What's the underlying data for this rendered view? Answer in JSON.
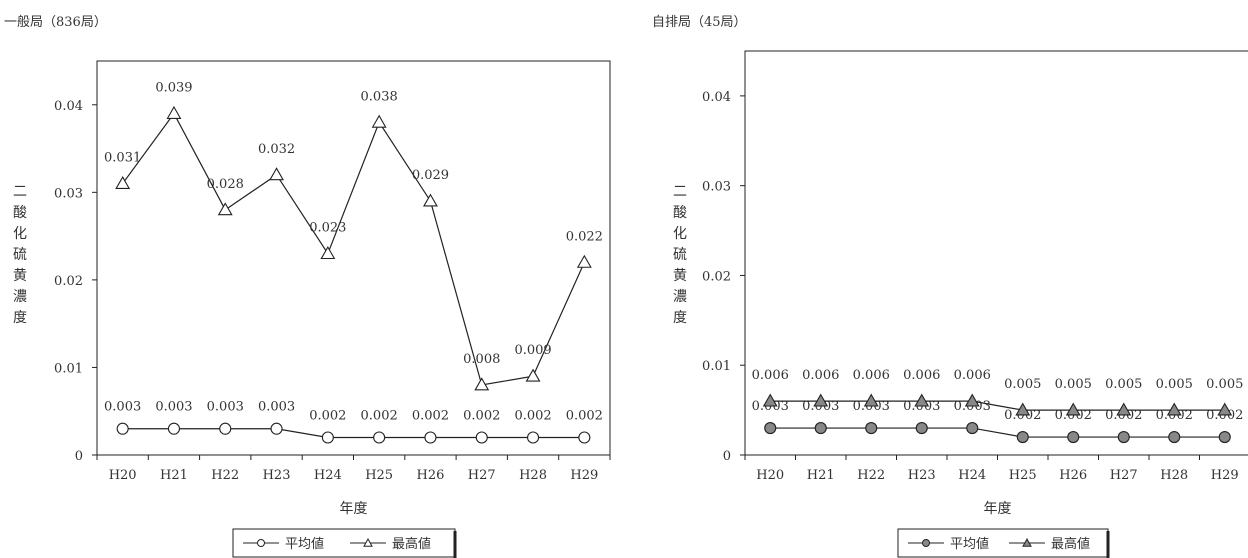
{
  "chart_data": [
    {
      "type": "line",
      "title": "一般局（836局）",
      "xlabel": "年度",
      "ylabel": "二酸化硫黄濃度",
      "categories": [
        "H20",
        "H21",
        "H22",
        "H23",
        "H24",
        "H25",
        "H26",
        "H27",
        "H28",
        "H29"
      ],
      "ylim": [
        0,
        0.045
      ],
      "yticks": [
        "0",
        "0.01",
        "0.02",
        "0.03",
        "0.04"
      ],
      "grid": false,
      "legend_position": "bottom",
      "series": [
        {
          "name": "平均値",
          "marker": "circle-open",
          "color": "#222222",
          "values": [
            0.003,
            0.003,
            0.003,
            0.003,
            0.002,
            0.002,
            0.002,
            0.002,
            0.002,
            0.002
          ],
          "labels": [
            "0.003",
            "0.003",
            "0.003",
            "0.003",
            "0.002",
            "0.002",
            "0.002",
            "0.002",
            "0.002",
            "0.002"
          ]
        },
        {
          "name": "最高値",
          "marker": "triangle-open",
          "color": "#222222",
          "values": [
            0.031,
            0.039,
            0.028,
            0.032,
            0.023,
            0.038,
            0.029,
            0.008,
            0.009,
            0.022
          ],
          "labels": [
            "0.031",
            "0.039",
            "0.028",
            "0.032",
            "0.023",
            "0.038",
            "0.029",
            "0.008",
            "0.009",
            "0.022"
          ]
        }
      ]
    },
    {
      "type": "line",
      "title": "自排局（45局）",
      "xlabel": "年度",
      "ylabel": "二酸化硫黄濃度",
      "categories": [
        "H20",
        "H21",
        "H22",
        "H23",
        "H24",
        "H25",
        "H26",
        "H27",
        "H28",
        "H29"
      ],
      "ylim": [
        0,
        0.045
      ],
      "yticks": [
        "0",
        "0.01",
        "0.02",
        "0.03",
        "0.04"
      ],
      "grid": false,
      "legend_position": "bottom",
      "series": [
        {
          "name": "平均値",
          "marker": "circle-filled",
          "color": "#888888",
          "values": [
            0.003,
            0.003,
            0.003,
            0.003,
            0.003,
            0.002,
            0.002,
            0.002,
            0.002,
            0.002
          ],
          "labels": [
            "0.003",
            "0.003",
            "0.003",
            "0.003",
            "0.003",
            "0.002",
            "0.002",
            "0.002",
            "0.002",
            "0.002"
          ]
        },
        {
          "name": "最高値",
          "marker": "triangle-filled",
          "color": "#888888",
          "values": [
            0.006,
            0.006,
            0.006,
            0.006,
            0.006,
            0.005,
            0.005,
            0.005,
            0.005,
            0.005
          ],
          "labels": [
            "0.006",
            "0.006",
            "0.006",
            "0.006",
            "0.006",
            "0.005",
            "0.005",
            "0.005",
            "0.005",
            "0.005"
          ]
        }
      ]
    }
  ]
}
